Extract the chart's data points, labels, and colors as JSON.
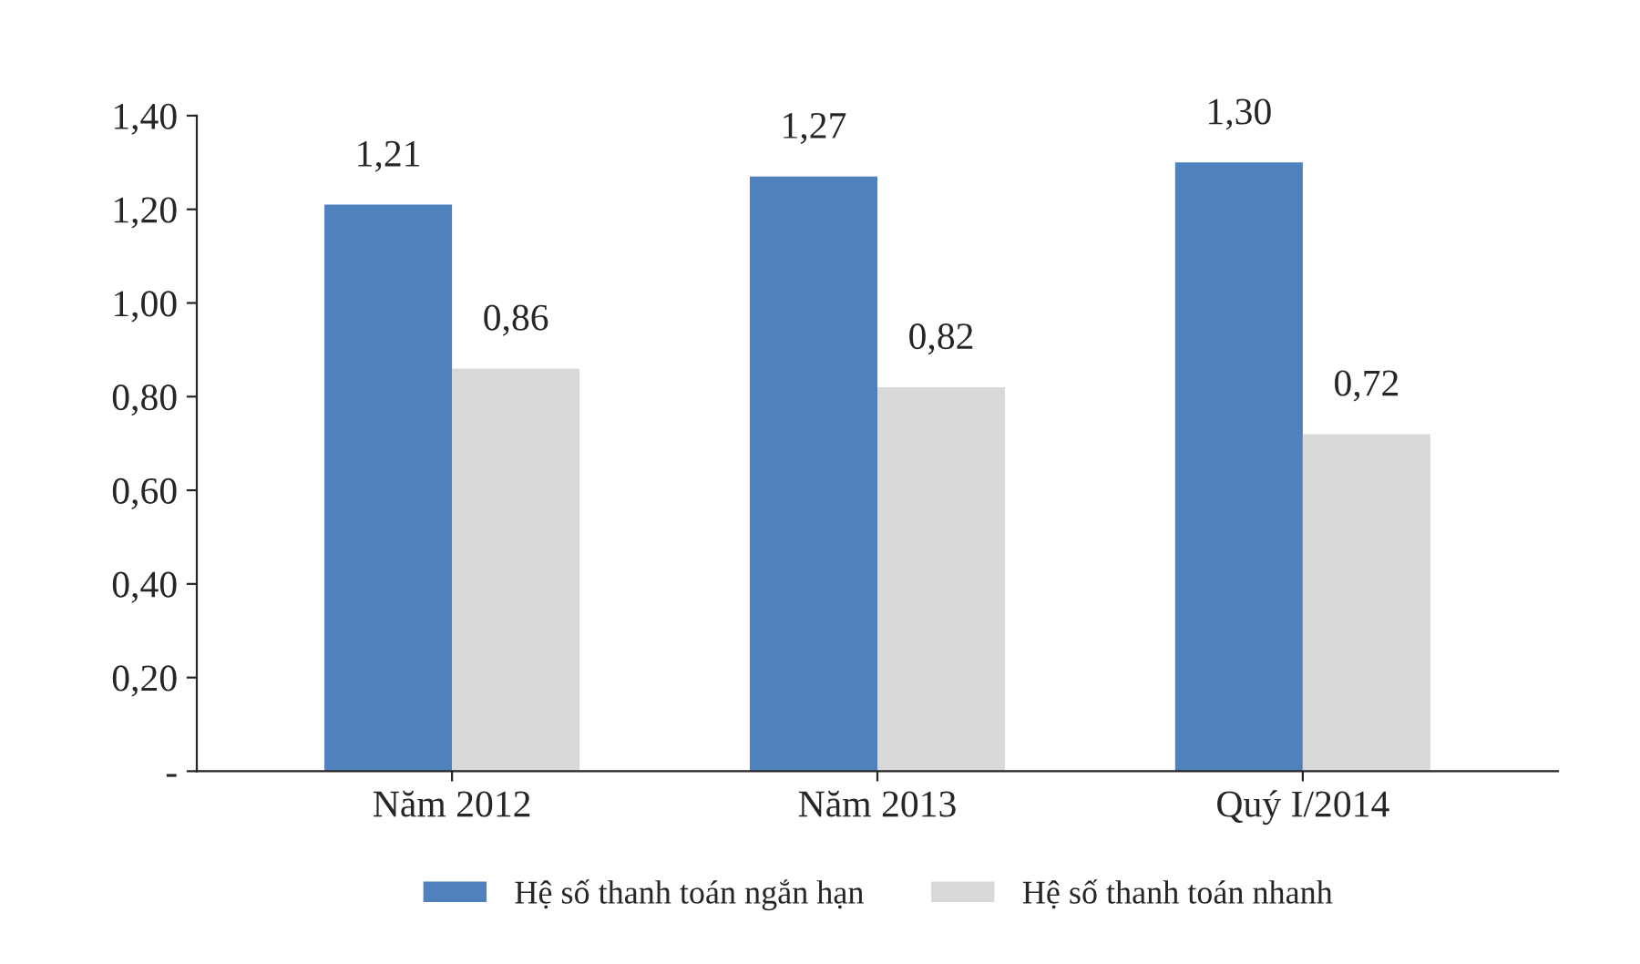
{
  "chart_data": {
    "type": "bar",
    "categories": [
      "Năm 2012",
      "Năm 2013",
      "Quý I/2014"
    ],
    "series": [
      {
        "name": "Hệ số thanh toán ngắn hạn",
        "color": "#4f81bd",
        "values": [
          1.21,
          1.27,
          1.3
        ],
        "value_labels": [
          "1,21",
          "1,27",
          "1,30"
        ]
      },
      {
        "name": "Hệ số thanh toán nhanh",
        "color": "#d9d9d9",
        "values": [
          0.86,
          0.82,
          0.72
        ],
        "value_labels": [
          "0,86",
          "0,82",
          "0,72"
        ]
      }
    ],
    "ylim": [
      0,
      1.4
    ],
    "yticks": [
      {
        "value": 0,
        "label": "-"
      },
      {
        "value": 0.2,
        "label": "0,20"
      },
      {
        "value": 0.4,
        "label": "0,40"
      },
      {
        "value": 0.6,
        "label": "0,60"
      },
      {
        "value": 0.8,
        "label": "0,80"
      },
      {
        "value": 1.0,
        "label": "1,00"
      },
      {
        "value": 1.2,
        "label": "1,20"
      },
      {
        "value": 1.4,
        "label": "1,40"
      }
    ],
    "grid": false,
    "legend": "bottom"
  }
}
